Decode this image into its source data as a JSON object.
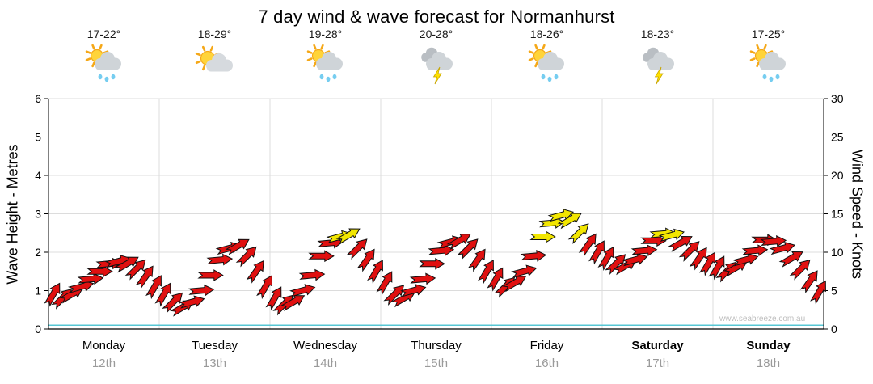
{
  "chart": {
    "title": "7 day wind & wave forecast for Normanhurst",
    "watermark": "www.seabreeze.com.au"
  },
  "days": [
    {
      "name": "Monday",
      "date": "12th",
      "temp": "17-22°",
      "icon": "sun-cloud-rain",
      "bold": false
    },
    {
      "name": "Tuesday",
      "date": "13th",
      "temp": "18-29°",
      "icon": "sun-cloud",
      "bold": false
    },
    {
      "name": "Wednesday",
      "date": "14th",
      "temp": "19-28°",
      "icon": "sun-cloud-rain",
      "bold": false
    },
    {
      "name": "Thursday",
      "date": "15th",
      "temp": "20-28°",
      "icon": "storm",
      "bold": false
    },
    {
      "name": "Friday",
      "date": "16th",
      "temp": "18-26°",
      "icon": "sun-cloud-rain",
      "bold": false
    },
    {
      "name": "Saturday",
      "date": "17th",
      "temp": "18-23°",
      "icon": "storm",
      "bold": true
    },
    {
      "name": "Sunday",
      "date": "18th",
      "temp": "17-25°",
      "icon": "sun-cloud-rain",
      "bold": true
    }
  ],
  "chart_data": {
    "type": "scatter",
    "title": "7 day wind & wave forecast for Normanhurst",
    "xlabel": "",
    "ylabel_left": "Wave Height - Metres",
    "ylabel_right": "Wind Speed - Knots",
    "ylim_left": [
      0,
      6
    ],
    "ylim_right": [
      0,
      30
    ],
    "left_tick_step": 1,
    "right_tick_step": 5,
    "x_categories": [
      "Monday 12th",
      "Tuesday 13th",
      "Wednesday 14th",
      "Thursday 15th",
      "Friday 16th",
      "Saturday 17th",
      "Sunday 18th"
    ],
    "points_per_day": 12,
    "color_threshold_knots": 12,
    "colors": {
      "arrow_normal": "#e01010",
      "arrow_strong": "#f2e600",
      "arrow_outline": "#111111",
      "wave_line": "#57c7d4",
      "grid": "#dcdcdc"
    },
    "series": [
      {
        "name": "Wind Speed (knots)",
        "marker": "wind-arrow",
        "values": [
          4.5,
          4.0,
          4.5,
          5.5,
          6.5,
          7.5,
          8.5,
          8.8,
          8.5,
          7.8,
          6.8,
          5.5,
          4.5,
          3.5,
          2.8,
          3.5,
          5.0,
          7.0,
          9.0,
          10.5,
          10.8,
          9.5,
          7.5,
          5.5,
          4.0,
          3.2,
          3.5,
          5.0,
          7.0,
          9.5,
          11.2,
          12.0,
          12.2,
          10.5,
          9.0,
          7.5,
          6.0,
          4.5,
          4.0,
          5.0,
          6.5,
          8.5,
          10.2,
          11.3,
          11.5,
          10.5,
          9.0,
          7.5,
          6.5,
          5.5,
          6.0,
          7.5,
          9.5,
          12.0,
          13.8,
          14.8,
          14.2,
          12.5,
          11.0,
          10.0,
          9.2,
          8.5,
          8.2,
          9.0,
          10.2,
          11.5,
          12.4,
          12.2,
          11.2,
          10.2,
          9.2,
          8.5,
          8.0,
          7.5,
          8.0,
          9.0,
          10.2,
          11.6,
          11.4,
          10.5,
          9.2,
          7.8,
          6.2,
          4.8
        ],
        "dir_deg": [
          30,
          45,
          60,
          75,
          85,
          90,
          85,
          75,
          60,
          45,
          35,
          30,
          30,
          45,
          60,
          75,
          85,
          90,
          85,
          75,
          60,
          45,
          35,
          30,
          30,
          45,
          60,
          75,
          85,
          90,
          85,
          75,
          60,
          45,
          35,
          30,
          30,
          45,
          60,
          75,
          85,
          90,
          85,
          75,
          60,
          45,
          35,
          30,
          30,
          45,
          60,
          75,
          85,
          90,
          85,
          75,
          60,
          45,
          35,
          30,
          30,
          45,
          60,
          75,
          85,
          90,
          85,
          75,
          60,
          45,
          35,
          30,
          30,
          45,
          60,
          75,
          85,
          90,
          85,
          75,
          60,
          45,
          35,
          30
        ]
      },
      {
        "name": "Wave Height (m)",
        "marker": "line",
        "constant_value_m": 0.1
      }
    ]
  }
}
